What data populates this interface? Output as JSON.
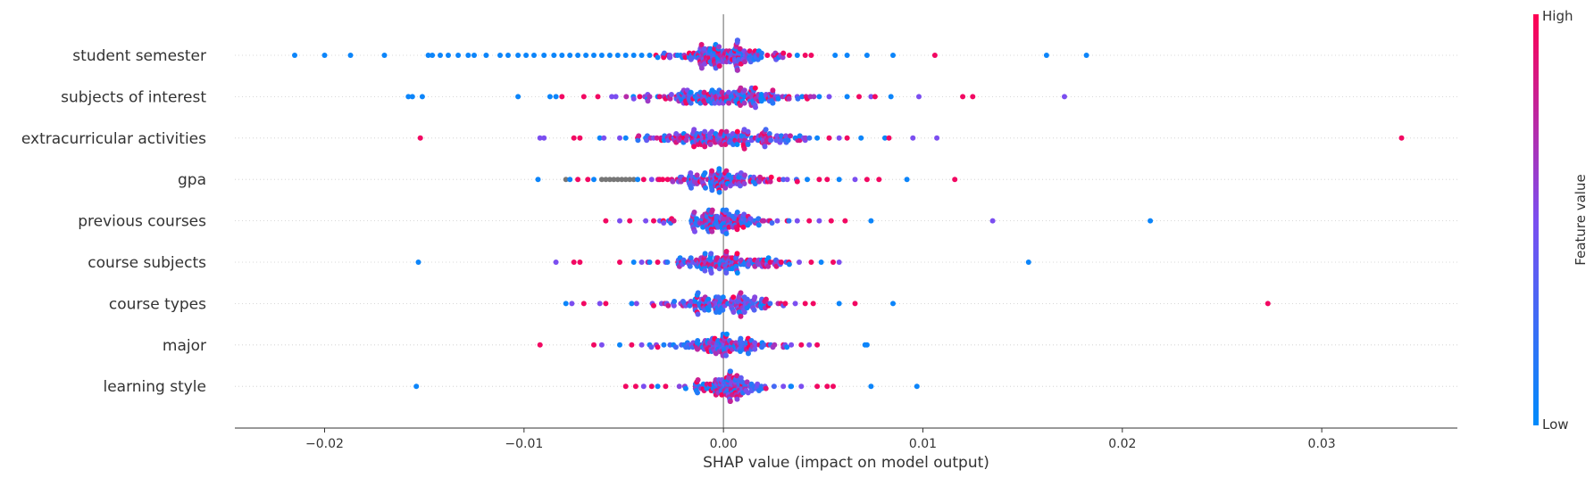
{
  "chart_data": {
    "type": "scatter",
    "subtype": "shap-beeswarm",
    "xlabel": "SHAP value (impact on model output)",
    "xlim": [
      -0.0245,
      0.0368
    ],
    "xticks": [
      -0.02,
      -0.01,
      0.0,
      0.01,
      0.02,
      0.03
    ],
    "xtick_labels": [
      "−0.02",
      "−0.01",
      "0.00",
      "0.01",
      "0.02",
      "0.03"
    ],
    "zero_line": 0.0,
    "colorbar": {
      "label": "Feature value",
      "high_label": "High",
      "low_label": "Low",
      "high_color": "#ff0052",
      "mid_color": "#7b4ef0",
      "low_color": "#008bfb",
      "missing_color": "#777777"
    },
    "features": [
      {
        "name": "student semester",
        "seed": 11,
        "core_spread": 0.0012,
        "core_count": 160,
        "outliers": [
          {
            "x": -0.0215,
            "v": 0.05
          },
          {
            "x": -0.02,
            "v": 0.05
          },
          {
            "x": -0.0187,
            "v": 0.05
          },
          {
            "x": -0.017,
            "v": 0.05
          },
          {
            "x": -0.0148,
            "v": 0.05
          },
          {
            "x": -0.0146,
            "v": 0.05
          },
          {
            "x": -0.0142,
            "v": 0.05
          },
          {
            "x": -0.0138,
            "v": 0.05
          },
          {
            "x": -0.0133,
            "v": 0.05
          },
          {
            "x": -0.0128,
            "v": 0.05
          },
          {
            "x": -0.0125,
            "v": 0.05
          },
          {
            "x": -0.0119,
            "v": 0.05
          },
          {
            "x": -0.0112,
            "v": 0.05
          },
          {
            "x": -0.0108,
            "v": 0.05
          },
          {
            "x": -0.0103,
            "v": 0.05
          },
          {
            "x": -0.0099,
            "v": 0.05
          },
          {
            "x": -0.0095,
            "v": 0.05
          },
          {
            "x": -0.009,
            "v": 0.05
          },
          {
            "x": -0.0085,
            "v": 0.05
          },
          {
            "x": -0.0081,
            "v": 0.05
          },
          {
            "x": -0.0077,
            "v": 0.05
          },
          {
            "x": -0.0073,
            "v": 0.05
          },
          {
            "x": -0.0069,
            "v": 0.05
          },
          {
            "x": -0.0065,
            "v": 0.05
          },
          {
            "x": -0.0061,
            "v": 0.05
          },
          {
            "x": -0.0057,
            "v": 0.05
          },
          {
            "x": -0.0053,
            "v": 0.05
          },
          {
            "x": -0.0049,
            "v": 0.05
          },
          {
            "x": -0.0045,
            "v": 0.05
          },
          {
            "x": -0.0041,
            "v": 0.05
          },
          {
            "x": -0.0037,
            "v": 0.05
          },
          {
            "x": -0.0033,
            "v": 0.05
          },
          {
            "x": -0.003,
            "v": 0.95
          },
          {
            "x": -0.0027,
            "v": 0.05
          },
          {
            "x": -0.0023,
            "v": 0.05
          },
          {
            "x": -0.0019,
            "v": 0.95
          },
          {
            "x": 0.0022,
            "v": 0.95
          },
          {
            "x": 0.0026,
            "v": 0.95
          },
          {
            "x": 0.003,
            "v": 0.95
          },
          {
            "x": 0.0033,
            "v": 0.95
          },
          {
            "x": 0.0037,
            "v": 0.05
          },
          {
            "x": 0.0041,
            "v": 0.95
          },
          {
            "x": 0.0044,
            "v": 0.95
          },
          {
            "x": 0.0056,
            "v": 0.05
          },
          {
            "x": 0.0062,
            "v": 0.05
          },
          {
            "x": 0.0072,
            "v": 0.05
          },
          {
            "x": 0.0085,
            "v": 0.05
          },
          {
            "x": 0.0106,
            "v": 0.95
          },
          {
            "x": 0.0162,
            "v": 0.05
          },
          {
            "x": 0.0182,
            "v": 0.05
          }
        ]
      },
      {
        "name": "subjects of interest",
        "seed": 23,
        "core_spread": 0.0018,
        "core_count": 180,
        "outliers": [
          {
            "x": -0.0158,
            "v": 0.05
          },
          {
            "x": -0.0156,
            "v": 0.05
          },
          {
            "x": -0.0151,
            "v": 0.05
          },
          {
            "x": -0.0103,
            "v": 0.05
          },
          {
            "x": -0.0087,
            "v": 0.05
          },
          {
            "x": -0.0084,
            "v": 0.05
          },
          {
            "x": -0.0081,
            "v": 0.95
          },
          {
            "x": -0.007,
            "v": 0.95
          },
          {
            "x": -0.0063,
            "v": 0.95
          },
          {
            "x": -0.0056,
            "v": 0.5
          },
          {
            "x": -0.0054,
            "v": 0.5
          },
          {
            "x": -0.0045,
            "v": 0.5
          },
          {
            "x": -0.0042,
            "v": 0.95
          },
          {
            "x": -0.0038,
            "v": 0.5
          },
          {
            "x": -0.0033,
            "v": 0.05
          },
          {
            "x": -0.0029,
            "v": 0.95
          },
          {
            "x": 0.0032,
            "v": 0.95
          },
          {
            "x": 0.0037,
            "v": 0.5
          },
          {
            "x": 0.0042,
            "v": 0.95
          },
          {
            "x": 0.0048,
            "v": 0.05
          },
          {
            "x": 0.0053,
            "v": 0.5
          },
          {
            "x": 0.0062,
            "v": 0.05
          },
          {
            "x": 0.0068,
            "v": 0.95
          },
          {
            "x": 0.0074,
            "v": 0.5
          },
          {
            "x": 0.0076,
            "v": 0.95
          },
          {
            "x": 0.0084,
            "v": 0.05
          },
          {
            "x": 0.0098,
            "v": 0.5
          },
          {
            "x": 0.012,
            "v": 0.95
          },
          {
            "x": 0.0125,
            "v": 0.95
          },
          {
            "x": 0.0171,
            "v": 0.5
          }
        ]
      },
      {
        "name": "extracurricular activities",
        "seed": 37,
        "core_spread": 0.0018,
        "core_count": 180,
        "outliers": [
          {
            "x": -0.0152,
            "v": 0.95
          },
          {
            "x": -0.0092,
            "v": 0.5
          },
          {
            "x": -0.009,
            "v": 0.5
          },
          {
            "x": -0.0075,
            "v": 0.95
          },
          {
            "x": -0.0072,
            "v": 0.95
          },
          {
            "x": -0.0062,
            "v": 0.05
          },
          {
            "x": -0.006,
            "v": 0.5
          },
          {
            "x": -0.0052,
            "v": 0.5
          },
          {
            "x": -0.0049,
            "v": 0.05
          },
          {
            "x": -0.0043,
            "v": 0.95
          },
          {
            "x": -0.0039,
            "v": 0.05
          },
          {
            "x": -0.0035,
            "v": 0.5
          },
          {
            "x": -0.0031,
            "v": 0.95
          },
          {
            "x": 0.0031,
            "v": 0.95
          },
          {
            "x": 0.0036,
            "v": 0.05
          },
          {
            "x": 0.0041,
            "v": 0.5
          },
          {
            "x": 0.0047,
            "v": 0.05
          },
          {
            "x": 0.0053,
            "v": 0.95
          },
          {
            "x": 0.0058,
            "v": 0.5
          },
          {
            "x": 0.0062,
            "v": 0.95
          },
          {
            "x": 0.0069,
            "v": 0.05
          },
          {
            "x": 0.0081,
            "v": 0.05
          },
          {
            "x": 0.0083,
            "v": 0.95
          },
          {
            "x": 0.0095,
            "v": 0.5
          },
          {
            "x": 0.0107,
            "v": 0.5
          },
          {
            "x": 0.034,
            "v": 0.95
          }
        ]
      },
      {
        "name": "gpa",
        "seed": 41,
        "core_spread": 0.0014,
        "core_count": 130,
        "outliers": [
          {
            "x": -0.0093,
            "v": 0.05
          },
          {
            "x": -0.0079,
            "v": -1
          },
          {
            "x": -0.0077,
            "v": 0.05
          },
          {
            "x": -0.0073,
            "v": 0.95
          },
          {
            "x": -0.0068,
            "v": 0.95
          },
          {
            "x": -0.0065,
            "v": 0.05
          },
          {
            "x": -0.0061,
            "v": -1
          },
          {
            "x": -0.0059,
            "v": -1
          },
          {
            "x": -0.0057,
            "v": -1
          },
          {
            "x": -0.0055,
            "v": -1
          },
          {
            "x": -0.0053,
            "v": -1
          },
          {
            "x": -0.0051,
            "v": -1
          },
          {
            "x": -0.0049,
            "v": -1
          },
          {
            "x": -0.0047,
            "v": -1
          },
          {
            "x": -0.0045,
            "v": -1
          },
          {
            "x": -0.0043,
            "v": 0.05
          },
          {
            "x": -0.004,
            "v": 0.95
          },
          {
            "x": -0.0036,
            "v": 0.5
          },
          {
            "x": -0.0032,
            "v": 0.95
          },
          {
            "x": -0.0028,
            "v": 0.95
          },
          {
            "x": 0.0028,
            "v": 0.95
          },
          {
            "x": 0.0032,
            "v": 0.5
          },
          {
            "x": 0.0037,
            "v": 0.95
          },
          {
            "x": 0.0042,
            "v": 0.05
          },
          {
            "x": 0.0048,
            "v": 0.95
          },
          {
            "x": 0.0052,
            "v": 0.95
          },
          {
            "x": 0.0058,
            "v": 0.05
          },
          {
            "x": 0.0066,
            "v": 0.5
          },
          {
            "x": 0.0072,
            "v": 0.95
          },
          {
            "x": 0.0078,
            "v": 0.95
          },
          {
            "x": 0.0092,
            "v": 0.05
          },
          {
            "x": 0.0116,
            "v": 0.95
          }
        ]
      },
      {
        "name": "previous courses",
        "seed": 53,
        "core_spread": 0.0012,
        "core_count": 140,
        "outliers": [
          {
            "x": -0.0059,
            "v": 0.95
          },
          {
            "x": -0.0052,
            "v": 0.5
          },
          {
            "x": -0.0047,
            "v": 0.95
          },
          {
            "x": -0.0039,
            "v": 0.5
          },
          {
            "x": -0.0035,
            "v": 0.95
          },
          {
            "x": -0.003,
            "v": 0.5
          },
          {
            "x": -0.0026,
            "v": 0.95
          },
          {
            "x": 0.0027,
            "v": 0.5
          },
          {
            "x": 0.0032,
            "v": 0.95
          },
          {
            "x": 0.0037,
            "v": 0.5
          },
          {
            "x": 0.0043,
            "v": 0.95
          },
          {
            "x": 0.0048,
            "v": 0.5
          },
          {
            "x": 0.0054,
            "v": 0.95
          },
          {
            "x": 0.0061,
            "v": 0.95
          },
          {
            "x": 0.0074,
            "v": 0.05
          },
          {
            "x": 0.0135,
            "v": 0.5
          },
          {
            "x": 0.0214,
            "v": 0.05
          }
        ]
      },
      {
        "name": "course subjects",
        "seed": 67,
        "core_spread": 0.0013,
        "core_count": 140,
        "outliers": [
          {
            "x": -0.0153,
            "v": 0.05
          },
          {
            "x": -0.0084,
            "v": 0.5
          },
          {
            "x": -0.0075,
            "v": 0.95
          },
          {
            "x": -0.0072,
            "v": 0.95
          },
          {
            "x": -0.0052,
            "v": 0.95
          },
          {
            "x": -0.0045,
            "v": 0.05
          },
          {
            "x": -0.0041,
            "v": 0.5
          },
          {
            "x": -0.0037,
            "v": 0.05
          },
          {
            "x": -0.0033,
            "v": 0.95
          },
          {
            "x": -0.0029,
            "v": 0.5
          },
          {
            "x": 0.0029,
            "v": 0.95
          },
          {
            "x": 0.0033,
            "v": 0.05
          },
          {
            "x": 0.0038,
            "v": 0.5
          },
          {
            "x": 0.0044,
            "v": 0.95
          },
          {
            "x": 0.0049,
            "v": 0.05
          },
          {
            "x": 0.0055,
            "v": 0.95
          },
          {
            "x": 0.0058,
            "v": 0.5
          },
          {
            "x": 0.0153,
            "v": 0.05
          }
        ]
      },
      {
        "name": "course types",
        "seed": 79,
        "core_spread": 0.0014,
        "core_count": 140,
        "outliers": [
          {
            "x": -0.0079,
            "v": 0.05
          },
          {
            "x": -0.0076,
            "v": 0.5
          },
          {
            "x": -0.007,
            "v": 0.95
          },
          {
            "x": -0.0062,
            "v": 0.5
          },
          {
            "x": -0.0059,
            "v": 0.95
          },
          {
            "x": -0.0046,
            "v": 0.05
          },
          {
            "x": -0.0035,
            "v": 0.95
          },
          {
            "x": -0.0031,
            "v": 0.5
          },
          {
            "x": 0.0031,
            "v": 0.95
          },
          {
            "x": 0.0036,
            "v": 0.5
          },
          {
            "x": 0.0041,
            "v": 0.95
          },
          {
            "x": 0.0045,
            "v": 0.95
          },
          {
            "x": 0.0058,
            "v": 0.05
          },
          {
            "x": 0.0066,
            "v": 0.95
          },
          {
            "x": 0.0085,
            "v": 0.05
          },
          {
            "x": 0.0273,
            "v": 0.95
          }
        ]
      },
      {
        "name": "major",
        "seed": 83,
        "core_spread": 0.0013,
        "core_count": 130,
        "outliers": [
          {
            "x": -0.0092,
            "v": 0.95
          },
          {
            "x": -0.0065,
            "v": 0.95
          },
          {
            "x": -0.0061,
            "v": 0.5
          },
          {
            "x": -0.0052,
            "v": 0.05
          },
          {
            "x": -0.0046,
            "v": 0.95
          },
          {
            "x": -0.0041,
            "v": 0.5
          },
          {
            "x": -0.0037,
            "v": 0.05
          },
          {
            "x": -0.0033,
            "v": 0.95
          },
          {
            "x": 0.003,
            "v": 0.95
          },
          {
            "x": 0.0034,
            "v": 0.5
          },
          {
            "x": 0.0039,
            "v": 0.95
          },
          {
            "x": 0.0043,
            "v": 0.5
          },
          {
            "x": 0.0047,
            "v": 0.95
          },
          {
            "x": 0.0071,
            "v": 0.05
          },
          {
            "x": 0.0072,
            "v": 0.05
          }
        ]
      },
      {
        "name": "learning style",
        "seed": 97,
        "core_spread": 0.0011,
        "core_count": 130,
        "outliers": [
          {
            "x": -0.0154,
            "v": 0.05
          },
          {
            "x": -0.0049,
            "v": 0.95
          },
          {
            "x": -0.0044,
            "v": 0.95
          },
          {
            "x": -0.004,
            "v": 0.5
          },
          {
            "x": -0.0036,
            "v": 0.95
          },
          {
            "x": -0.0033,
            "v": 0.05
          },
          {
            "x": -0.0029,
            "v": 0.95
          },
          {
            "x": 0.003,
            "v": 0.5
          },
          {
            "x": 0.0034,
            "v": 0.05
          },
          {
            "x": 0.0039,
            "v": 0.5
          },
          {
            "x": 0.0047,
            "v": 0.95
          },
          {
            "x": 0.0052,
            "v": 0.95
          },
          {
            "x": 0.0055,
            "v": 0.95
          },
          {
            "x": 0.0074,
            "v": 0.05
          },
          {
            "x": 0.0097,
            "v": 0.05
          }
        ]
      }
    ]
  }
}
